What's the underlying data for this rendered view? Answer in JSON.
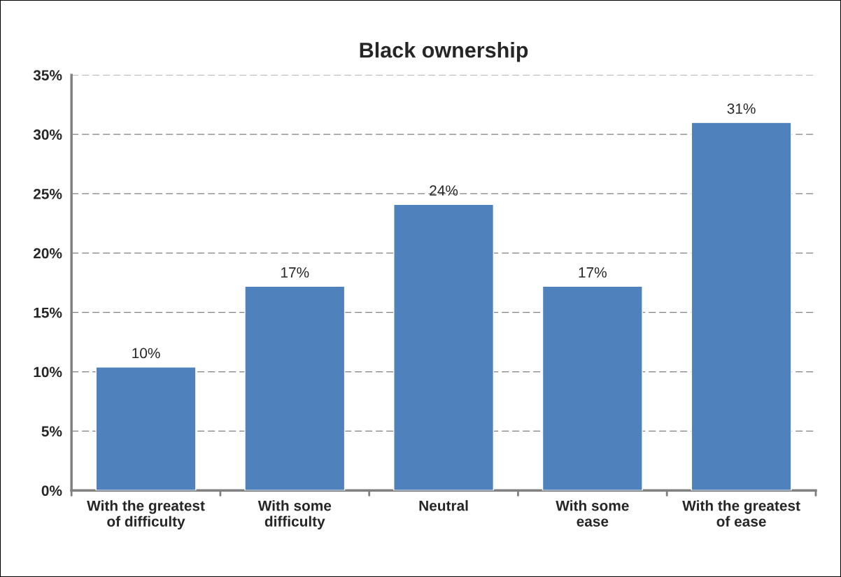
{
  "chart_data": {
    "type": "bar",
    "title": "Black ownership",
    "categories": [
      "With the greatest\nof difficulty",
      "With some\ndifficulty",
      "Neutral",
      "With some\nease",
      "With the greatest\nof ease"
    ],
    "values": [
      10.4,
      17.2,
      24.1,
      17.2,
      31.0
    ],
    "value_labels": [
      "10%",
      "17%",
      "24%",
      "17%",
      "31%"
    ],
    "color": "#4f81bd",
    "ylim": [
      0,
      35
    ],
    "yticks": [
      {
        "value": 0,
        "label": "0%"
      },
      {
        "value": 5,
        "label": "5%"
      },
      {
        "value": 10,
        "label": "10%"
      },
      {
        "value": 15,
        "label": "15%"
      },
      {
        "value": 20,
        "label": "20%"
      },
      {
        "value": 25,
        "label": "25%"
      },
      {
        "value": 30,
        "label": "30%"
      },
      {
        "value": 35,
        "label": "35%"
      }
    ],
    "grid": "y"
  }
}
